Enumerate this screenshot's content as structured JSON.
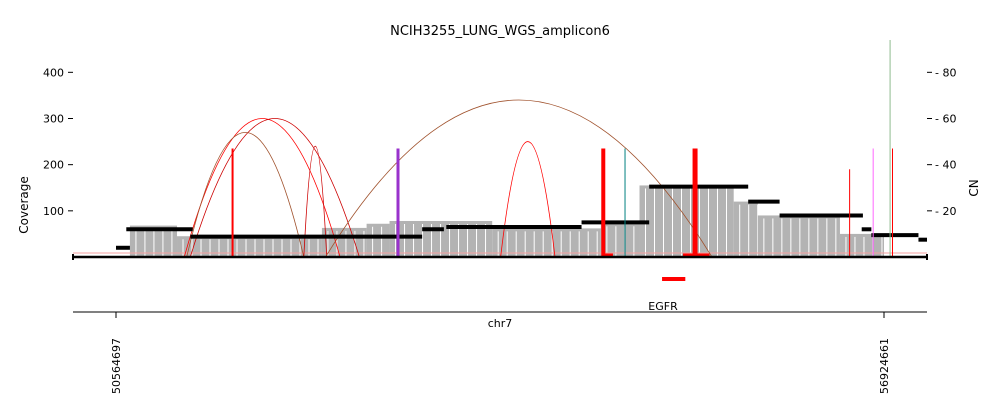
{
  "chart_data": {
    "type": "area",
    "title": "NCIH3255_LUNG_WGS_amplicon6",
    "ylabel_left": "Coverage",
    "ylabel_right": "CN",
    "xlabel": "chr7",
    "gene_label": "EGFR",
    "x_ticks": [
      "50564697",
      "56924661"
    ],
    "xlim": [
      50564697,
      56924661
    ],
    "ylim_left": [
      0,
      470
    ],
    "ylim_right": [
      0,
      94
    ],
    "y_ticks_left": [
      100,
      200,
      300,
      400
    ],
    "y_ticks_right": [
      20,
      40,
      60,
      80
    ],
    "grid": false,
    "colors": {
      "coverage": "#b3b3b3",
      "cn_segment": "#000000",
      "edge_red": "#ff0000",
      "edge_dark_red": "#cc0000",
      "edge_brown": "#a0522d",
      "edge_purple": "#9932cc",
      "edge_teal": "#008080",
      "edge_magenta": "#ff66ff",
      "gene": "#ff0000"
    },
    "coverage_series": [
      {
        "x": [
          50564697,
          50680000
        ],
        "y": 0
      },
      {
        "x": [
          50680000,
          51070000
        ],
        "y": 68
      },
      {
        "x": [
          51070000,
          52270000
        ],
        "y": 45
      },
      {
        "x": [
          52270000,
          52640000
        ],
        "y": 63
      },
      {
        "x": [
          52640000,
          52830000
        ],
        "y": 72
      },
      {
        "x": [
          52830000,
          53680000
        ],
        "y": 78
      },
      {
        "x": [
          53680000,
          54580000
        ],
        "y": 62
      },
      {
        "x": [
          54580000,
          54900000
        ],
        "y": 73
      },
      {
        "x": [
          54900000,
          55680000
        ],
        "y": 155
      },
      {
        "x": [
          55680000,
          55880000
        ],
        "y": 120
      },
      {
        "x": [
          55880000,
          56560000
        ],
        "y": 90
      },
      {
        "x": [
          56560000,
          56924661
        ],
        "y": 50
      }
    ],
    "cn_segments": [
      {
        "start": 50564697,
        "end": 50680000,
        "cn": 4
      },
      {
        "start": 50650000,
        "end": 51200000,
        "cn": 12
      },
      {
        "start": 51180000,
        "end": 53100000,
        "cn": 8.8
      },
      {
        "start": 53100000,
        "end": 53280000,
        "cn": 12
      },
      {
        "start": 53300000,
        "end": 54420000,
        "cn": 13
      },
      {
        "start": 54420000,
        "end": 54980000,
        "cn": 15
      },
      {
        "start": 54980000,
        "end": 55800000,
        "cn": 30.5
      },
      {
        "start": 55800000,
        "end": 56060000,
        "cn": 24
      },
      {
        "start": 56060000,
        "end": 56750000,
        "cn": 18
      },
      {
        "start": 56740000,
        "end": 56820000,
        "cn": 12
      },
      {
        "start": 56820000,
        "end": 57210000,
        "cn": 9.5
      },
      {
        "start": 57210000,
        "end": 57350000,
        "cn": 7.5
      }
    ],
    "breakpoint_edges": [
      {
        "start": 51130000,
        "end": 52420000,
        "peak": 300,
        "color": "#ff0000"
      },
      {
        "start": 51180000,
        "end": 52580000,
        "peak": 300,
        "color": "#cc0000"
      },
      {
        "start": 51150000,
        "end": 52120000,
        "peak": 270,
        "color": "#a0522d"
      },
      {
        "start": 52120000,
        "end": 52310000,
        "peak": 240,
        "color": "#cc0000"
      },
      {
        "start": 52300000,
        "end": 55500000,
        "peak": 340,
        "color": "#a0522d"
      },
      {
        "start": 53750000,
        "end": 54200000,
        "peak": 250,
        "color": "#ff0000"
      }
    ],
    "breakpoint_lines": [
      {
        "x": 51530000,
        "top": 235,
        "color": "#ff0000",
        "weight": 2
      },
      {
        "x": 52900000,
        "top": 235,
        "color": "#9932cc",
        "weight": 3
      },
      {
        "x": 54600000,
        "top": 235,
        "color": "#ff0000",
        "weight": 4
      },
      {
        "x": 54780000,
        "top": 235,
        "color": "#008080",
        "weight": 1
      },
      {
        "x": 55360000,
        "top": 235,
        "color": "#ff0000",
        "weight": 5
      },
      {
        "x": 56640000,
        "top": 190,
        "color": "#ff0000",
        "weight": 1
      },
      {
        "x": 56835000,
        "top": 235,
        "color": "#ff66ff",
        "weight": 1
      },
      {
        "x": 56995000,
        "top": 235,
        "color": "#ff0000",
        "weight": 1
      },
      {
        "x": 56975000,
        "top": 470,
        "color": "#8fbc8f",
        "weight": 1
      }
    ],
    "gene": {
      "name": "EGFR",
      "start": 55086700,
      "end": 55279300
    }
  }
}
